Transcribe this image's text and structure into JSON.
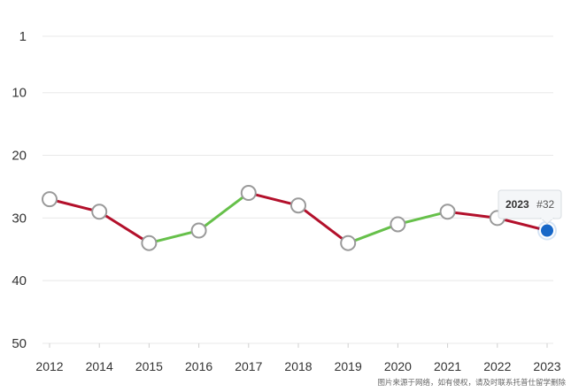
{
  "chart_data": {
    "type": "line",
    "x": [
      "2012",
      "2014",
      "2015",
      "2016",
      "2017",
      "2018",
      "2019",
      "2020",
      "2021",
      "2022",
      "2023"
    ],
    "series": [
      {
        "values": [
          27,
          29,
          34,
          32,
          26,
          28,
          34,
          31,
          29,
          30,
          32
        ]
      }
    ],
    "y_ticks": [
      "1",
      "10",
      "20",
      "30",
      "40",
      "50"
    ],
    "ylim": [
      1,
      50
    ],
    "y_inverted": true,
    "grid": "horizontal",
    "colors": {
      "rise": "#66c04a",
      "fall": "#b3102b",
      "grid": "#e8e8e8",
      "highlight": "#1767c7"
    },
    "tooltip": {
      "year": "2023",
      "rank": "#32"
    }
  },
  "watermark": "图片来源于网络，如有侵权，请及时联系托普仕留学删除"
}
